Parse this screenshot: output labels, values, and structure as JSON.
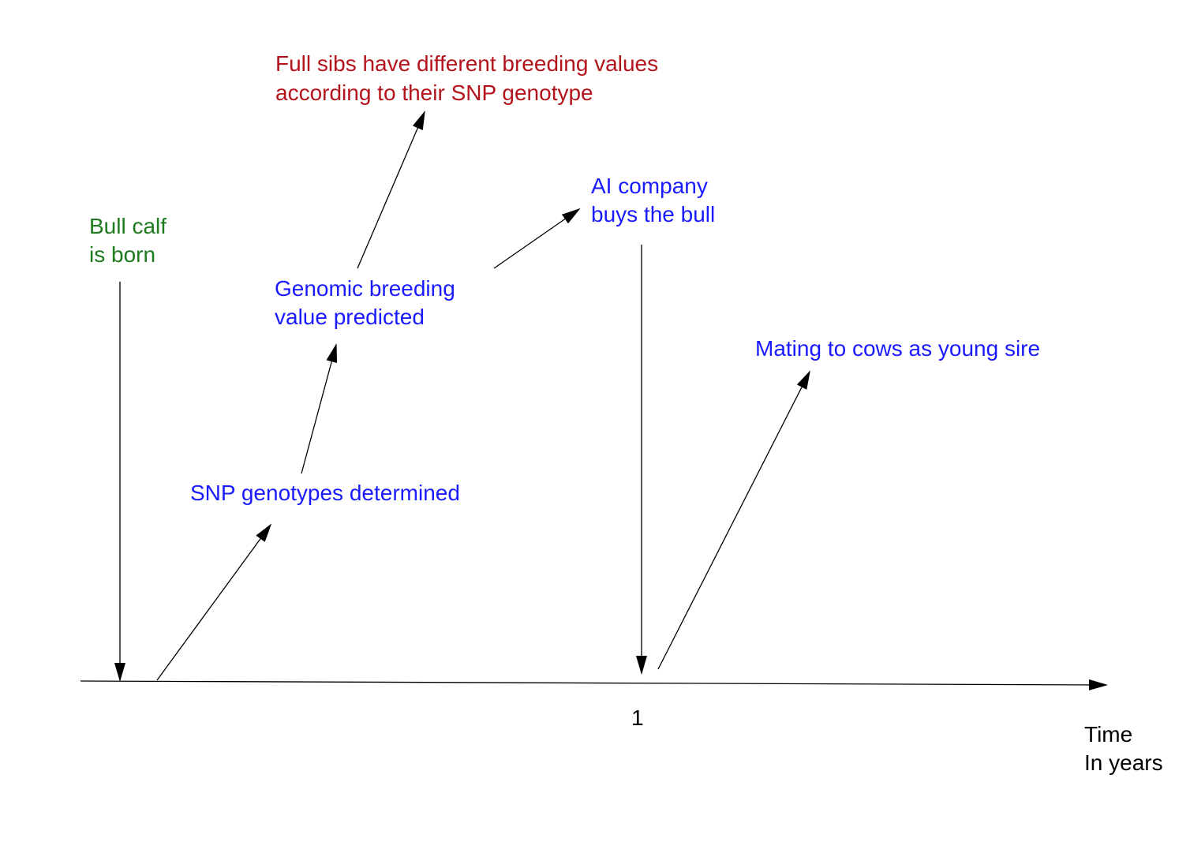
{
  "events": [
    {
      "lines": [
        "Bull calf",
        "is born"
      ]
    },
    {
      "lines": [
        "SNP genotypes determined"
      ]
    },
    {
      "lines": [
        "Genomic breeding",
        "value predicted"
      ]
    },
    {
      "lines": [
        "Full sibs have different breeding values",
        "according to their SNP genotype"
      ]
    },
    {
      "lines": [
        "AI company",
        "buys the bull"
      ]
    },
    {
      "lines": [
        "Mating to cows as young sire"
      ]
    }
  ],
  "axis": {
    "tick": "1",
    "label": [
      "Time",
      "In years"
    ]
  }
}
